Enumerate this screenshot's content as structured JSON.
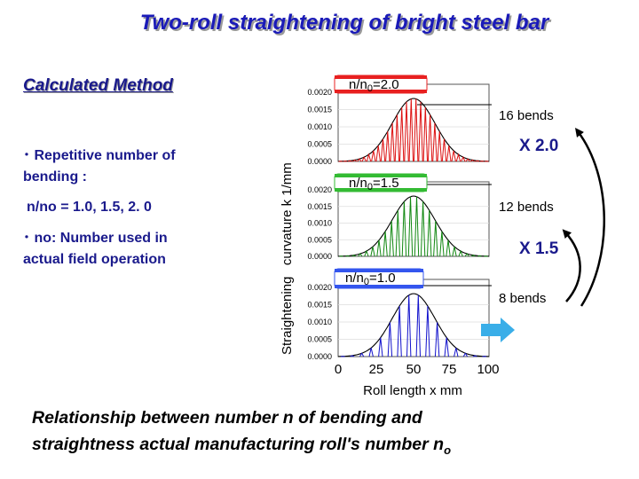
{
  "title": "Two-roll straightening of bright steel bar",
  "method_heading": "Calculated   Method",
  "bullets": [
    {
      "marker": "･",
      "lines": [
        "Repetitive number of",
        "bending :"
      ]
    },
    {
      "marker": "",
      "lines": [
        "n/no = 1.0, 1.5, 2. 0"
      ]
    },
    {
      "marker": "･",
      "lines": [
        "no: Number used in",
        "actual field operation"
      ]
    }
  ],
  "y_axis_label": "Straightening   curvature k 1/mm",
  "x_axis_label": "Roll length x mm",
  "x_ticks": [
    "0",
    "25",
    "50",
    "75",
    "100"
  ],
  "y_ticks": [
    "0.0020",
    "0.0015",
    "0.0010",
    "0.0005",
    "0.0000"
  ],
  "panels": [
    {
      "tag_prefix": "n/n",
      "tag_sub": "0",
      "tag_suffix": "=2.0",
      "bends": "16 bends",
      "bend_count": 16,
      "color": "#dd1111",
      "tag_color": "#e82020"
    },
    {
      "tag_prefix": "n/n",
      "tag_sub": "0",
      "tag_suffix": "=1.5",
      "bends": "12 bends",
      "bend_count": 12,
      "color": "#118811",
      "tag_color": "#33bb33"
    },
    {
      "tag_prefix": "n/n",
      "tag_sub": "0",
      "tag_suffix": "=1.0",
      "bends": "8 bends",
      "bend_count": 8,
      "color": "#1111cc",
      "tag_color": "#3355ee"
    }
  ],
  "multipliers": [
    "X 2.0",
    "X 1.5"
  ],
  "caption": {
    "line1": "Relationship between number n of bending and",
    "line2": "straightness actual manufacturing roll's number n",
    "line2_sub": "o"
  },
  "colors": {
    "title": "#1a1ab8",
    "text": "#1a1a8c",
    "arrow": "#3aaee8"
  }
}
